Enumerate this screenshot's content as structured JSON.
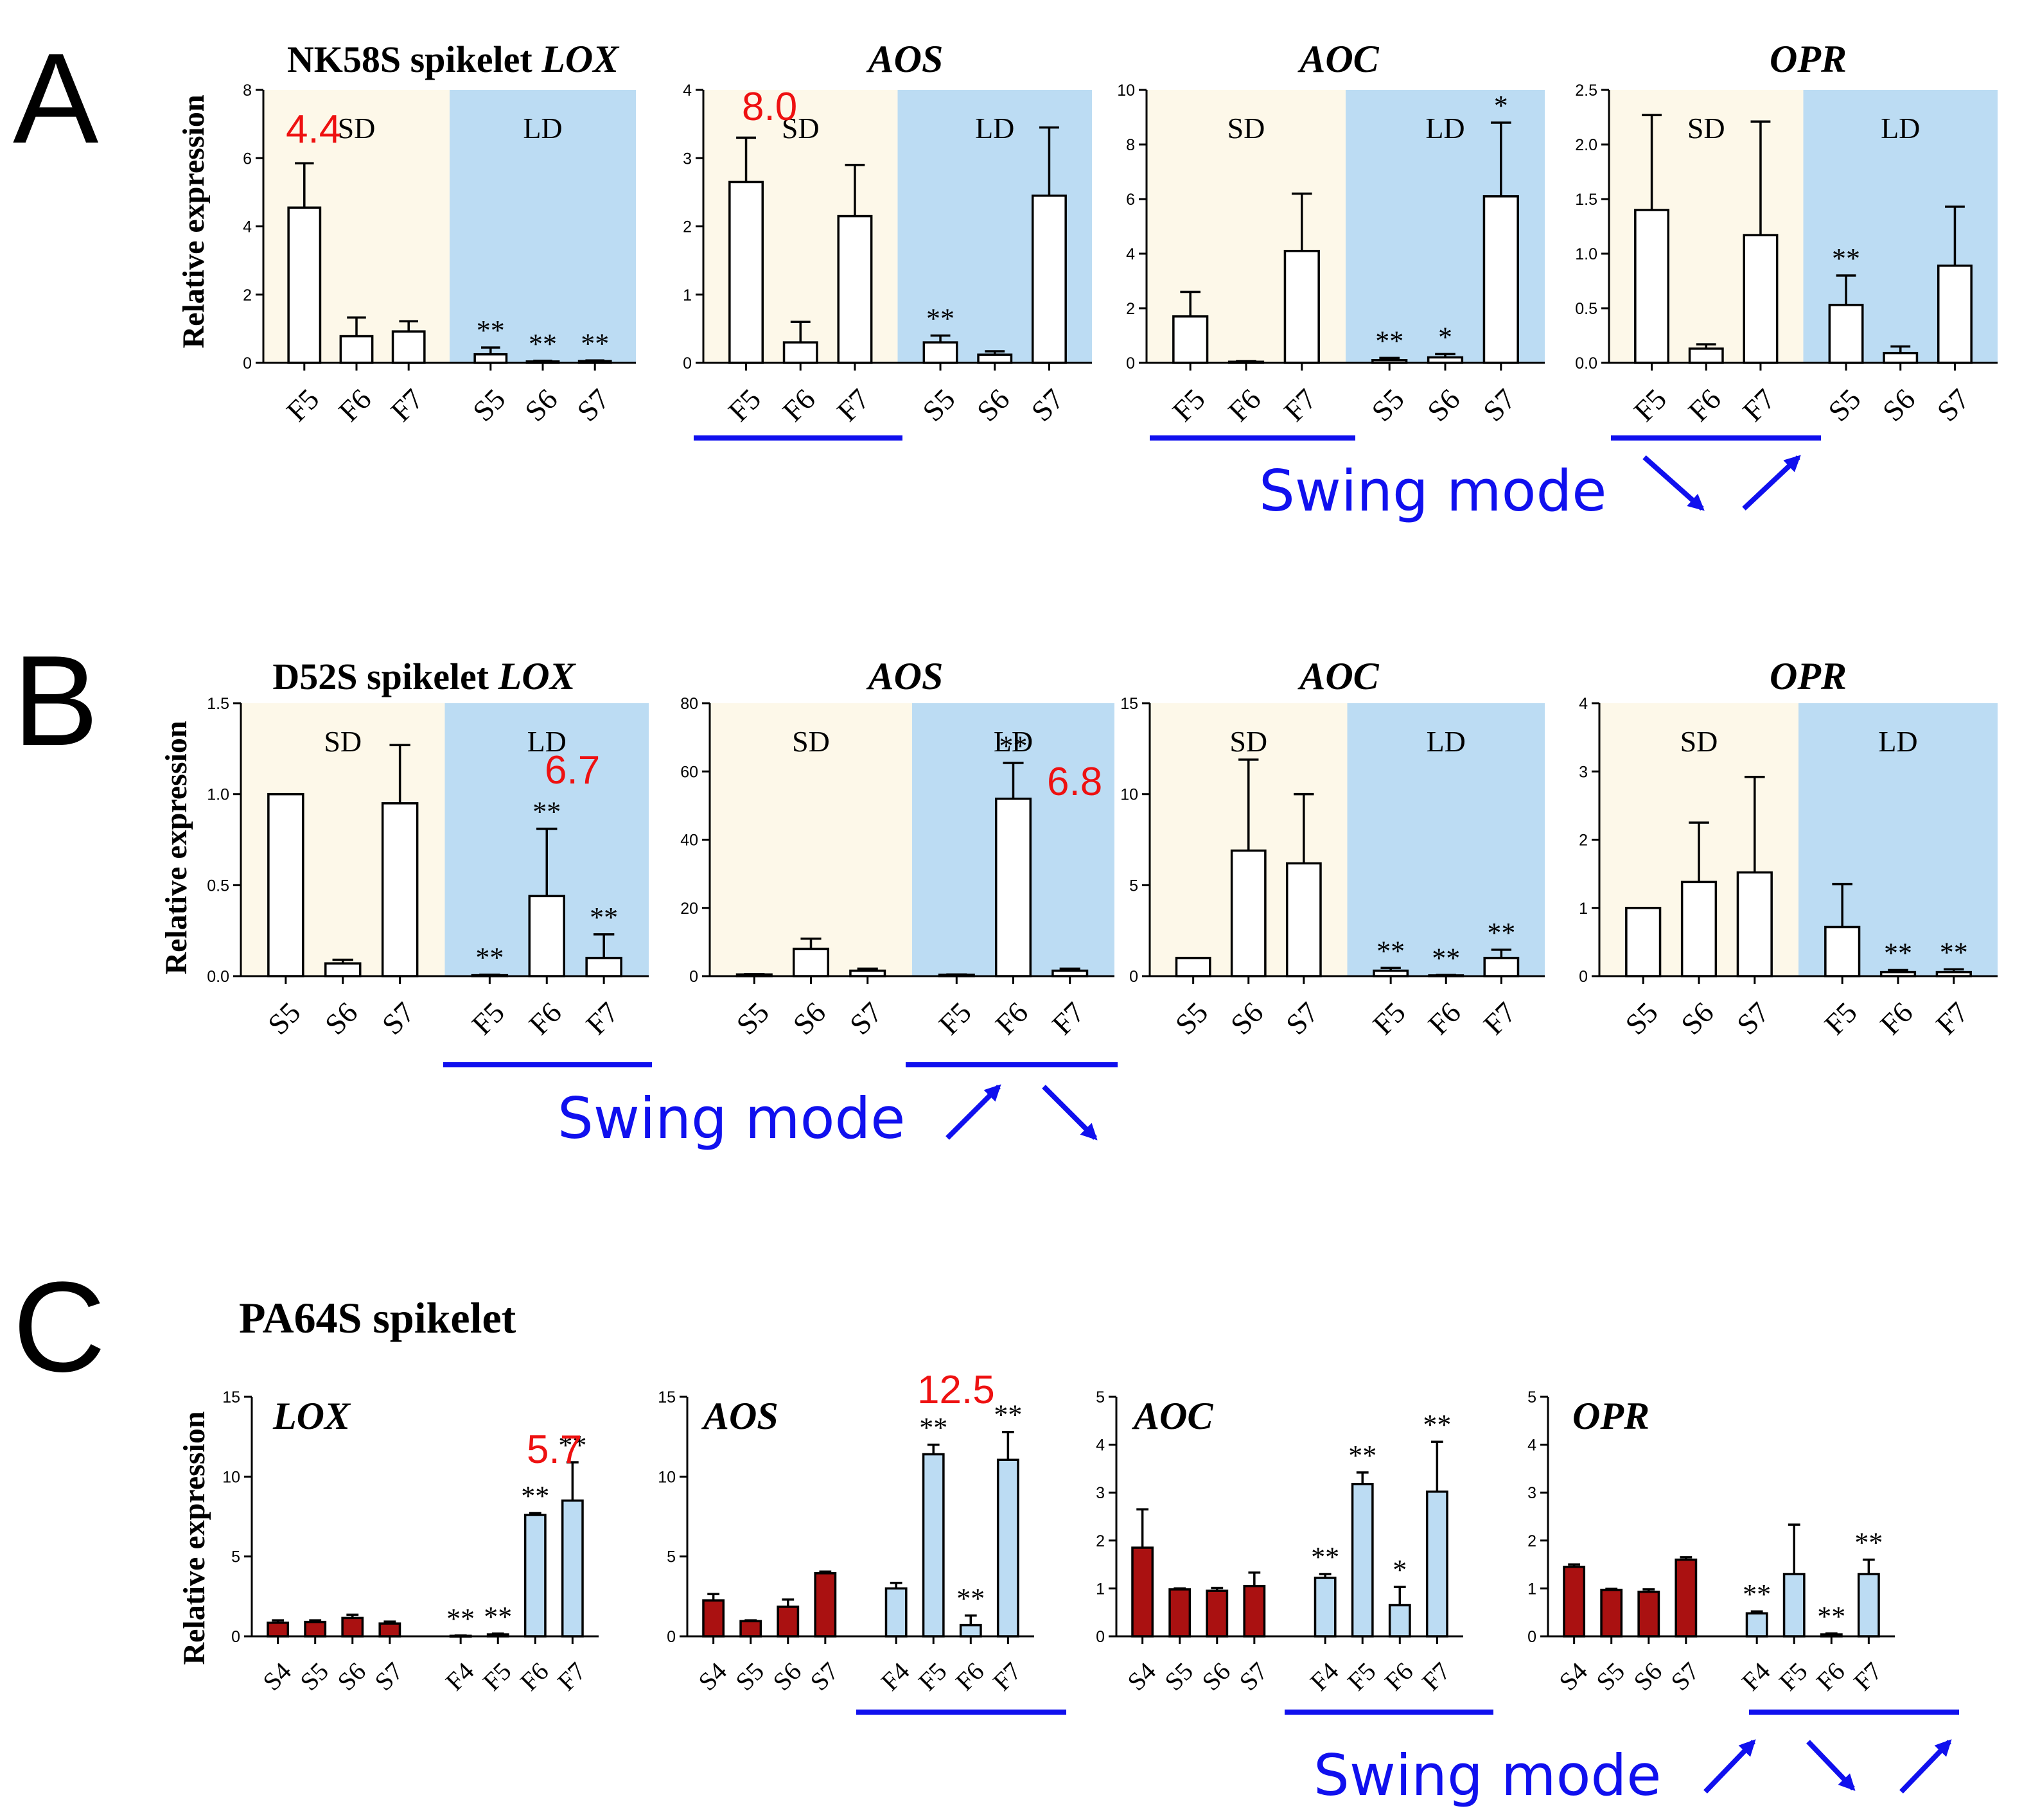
{
  "colors": {
    "sd_bg": "#fdf8e9",
    "ld_bg": "#bcdcf3",
    "bar_white": "#ffffff",
    "bar_red": "#aa1111",
    "bar_blue": "#bcdcf3",
    "swing": "#1010ee",
    "annotation": "#ee1111"
  },
  "panel_labels": [
    "A",
    "B",
    "C"
  ],
  "y_axis_label": "Relative expression",
  "swing_mode_label": "Swing mode",
  "panel_c_title": "PA64S spikelet",
  "chart_data": [
    {
      "id": "A-LOX",
      "type": "bar",
      "panel": "A",
      "title_plain": "NK58S spikelet ",
      "title_gene": "LOX",
      "categories": [
        "F5",
        "F6",
        "F7",
        "S5",
        "S6",
        "S7"
      ],
      "values": [
        4.55,
        0.78,
        0.92,
        0.25,
        0.04,
        0.05
      ],
      "errors": [
        1.3,
        0.55,
        0.3,
        0.2,
        0.02,
        0.02
      ],
      "stars": [
        "",
        "",
        "",
        "**",
        "**",
        "**"
      ],
      "ylim": [
        0,
        8
      ],
      "yticks": [
        "0",
        "2",
        "4",
        "6",
        "8"
      ],
      "regions": [
        {
          "label": "SD",
          "color": "sd"
        },
        {
          "label": "LD",
          "color": "ld"
        }
      ],
      "annotations": [
        {
          "text": "4.4",
          "bar": 0
        }
      ],
      "swing": null
    },
    {
      "id": "A-AOS",
      "type": "bar",
      "panel": "A",
      "title_plain": "",
      "title_gene": "AOS",
      "categories": [
        "F5",
        "F6",
        "F7",
        "S5",
        "S6",
        "S7"
      ],
      "values": [
        2.65,
        0.3,
        2.15,
        0.3,
        0.12,
        2.45
      ],
      "errors": [
        0.65,
        0.3,
        0.75,
        0.1,
        0.05,
        1.0
      ],
      "stars": [
        "",
        "",
        "",
        "**",
        "",
        ""
      ],
      "ylim": [
        0,
        4
      ],
      "yticks": [
        "0",
        "1",
        "2",
        "3",
        "4"
      ],
      "regions": [
        {
          "label": "SD",
          "color": "sd"
        },
        {
          "label": "LD",
          "color": "ld"
        }
      ],
      "annotations": [
        {
          "text": "8.0",
          "bar": 0
        }
      ],
      "swing": {
        "group": 0
      }
    },
    {
      "id": "A-AOC",
      "type": "bar",
      "panel": "A",
      "title_plain": "",
      "title_gene": "AOC",
      "categories": [
        "F5",
        "F6",
        "F7",
        "S5",
        "S6",
        "S7"
      ],
      "values": [
        1.7,
        0.04,
        4.1,
        0.1,
        0.2,
        6.1
      ],
      "errors": [
        0.9,
        0.02,
        2.1,
        0.08,
        0.12,
        2.7
      ],
      "stars": [
        "",
        "",
        "",
        "**",
        "*",
        "*"
      ],
      "ylim": [
        0,
        10
      ],
      "yticks": [
        "0",
        "2",
        "4",
        "6",
        "8",
        "10"
      ],
      "regions": [
        {
          "label": "SD",
          "color": "sd"
        },
        {
          "label": "LD",
          "color": "ld"
        }
      ],
      "annotations": [],
      "swing": {
        "group": 0
      }
    },
    {
      "id": "A-OPR",
      "type": "bar",
      "panel": "A",
      "title_plain": "",
      "title_gene": "OPR",
      "categories": [
        "F5",
        "F6",
        "F7",
        "S5",
        "S6",
        "S7"
      ],
      "values": [
        1.4,
        0.13,
        1.17,
        0.53,
        0.09,
        0.89
      ],
      "errors": [
        0.87,
        0.04,
        1.04,
        0.27,
        0.06,
        0.54
      ],
      "stars": [
        "",
        "",
        "",
        "**",
        "",
        ""
      ],
      "ylim": [
        0,
        2.5
      ],
      "yticks": [
        "0.0",
        "0.5",
        "1.0",
        "1.5",
        "2.0",
        "2.5"
      ],
      "regions": [
        {
          "label": "SD",
          "color": "sd"
        },
        {
          "label": "LD",
          "color": "ld"
        }
      ],
      "annotations": [],
      "swing": {
        "group": 0
      }
    },
    {
      "id": "B-LOX",
      "type": "bar",
      "panel": "B",
      "title_plain": "D52S spikelet ",
      "title_gene": "LOX",
      "categories": [
        "S5",
        "S6",
        "S7",
        "F5",
        "F6",
        "F7"
      ],
      "values": [
        1.0,
        0.07,
        0.95,
        0.005,
        0.44,
        0.1
      ],
      "errors": [
        0.0,
        0.02,
        0.32,
        0.003,
        0.37,
        0.13
      ],
      "stars": [
        "",
        "",
        "",
        "**",
        "**",
        "**"
      ],
      "ylim": [
        0,
        1.5
      ],
      "yticks": [
        "0.0",
        "0.5",
        "1.0",
        "1.5"
      ],
      "regions": [
        {
          "label": "SD",
          "color": "sd"
        },
        {
          "label": "LD",
          "color": "ld"
        }
      ],
      "annotations": [
        {
          "text": "6.7",
          "bar": 4
        }
      ],
      "swing": {
        "group": 1
      }
    },
    {
      "id": "B-AOS",
      "type": "bar",
      "panel": "B",
      "title_plain": "",
      "title_gene": "AOS",
      "categories": [
        "S5",
        "S6",
        "S7",
        "F5",
        "F6",
        "F7"
      ],
      "values": [
        0.5,
        8.0,
        1.6,
        0.4,
        52.0,
        1.6
      ],
      "errors": [
        0.1,
        3.0,
        0.6,
        0.1,
        10.5,
        0.6
      ],
      "stars": [
        "",
        "",
        "",
        "",
        "**",
        ""
      ],
      "ylim": [
        0,
        80
      ],
      "yticks": [
        "0",
        "20",
        "40",
        "60",
        "80"
      ],
      "regions": [
        {
          "label": "SD",
          "color": "sd"
        },
        {
          "label": "LD",
          "color": "ld"
        }
      ],
      "annotations": [
        {
          "text": "6.8",
          "bar": 4
        }
      ],
      "swing": {
        "group": 1
      }
    },
    {
      "id": "B-AOC",
      "type": "bar",
      "panel": "B",
      "title_plain": "",
      "title_gene": "AOC",
      "categories": [
        "S5",
        "S6",
        "S7",
        "F5",
        "F6",
        "F7"
      ],
      "values": [
        1.0,
        6.9,
        6.2,
        0.3,
        0.04,
        1.0
      ],
      "errors": [
        0.0,
        5.0,
        3.8,
        0.15,
        0.02,
        0.45
      ],
      "stars": [
        "",
        "",
        "",
        "**",
        "**",
        "**"
      ],
      "ylim": [
        0,
        15
      ],
      "yticks": [
        "0",
        "5",
        "10",
        "15"
      ],
      "regions": [
        {
          "label": "SD",
          "color": "sd"
        },
        {
          "label": "LD",
          "color": "ld"
        }
      ],
      "annotations": [],
      "swing": null
    },
    {
      "id": "B-OPR",
      "type": "bar",
      "panel": "B",
      "title_plain": "",
      "title_gene": "OPR",
      "categories": [
        "S5",
        "S6",
        "S7",
        "F5",
        "F6",
        "F7"
      ],
      "values": [
        1.0,
        1.38,
        1.52,
        0.72,
        0.06,
        0.06
      ],
      "errors": [
        0.0,
        0.87,
        1.4,
        0.63,
        0.03,
        0.04
      ],
      "stars": [
        "",
        "",
        "",
        "",
        "**",
        "**"
      ],
      "ylim": [
        0,
        4
      ],
      "yticks": [
        "0",
        "1",
        "2",
        "3",
        "4"
      ],
      "regions": [
        {
          "label": "SD",
          "color": "sd"
        },
        {
          "label": "LD",
          "color": "ld"
        }
      ],
      "annotations": [],
      "swing": null
    },
    {
      "id": "C-LOX",
      "type": "bar",
      "panel": "C",
      "title_plain": "",
      "title_gene": "LOX",
      "categories": [
        "S4",
        "S5",
        "S6",
        "S7",
        "F4",
        "F5",
        "F6",
        "F7"
      ],
      "values": [
        0.85,
        0.9,
        1.15,
        0.8,
        0.03,
        0.12,
        7.6,
        8.5
      ],
      "errors": [
        0.15,
        0.1,
        0.2,
        0.12,
        0.02,
        0.05,
        0.12,
        2.4
      ],
      "stars": [
        "",
        "",
        "",
        "",
        "**",
        "**",
        "**",
        "**"
      ],
      "ylim": [
        0,
        15
      ],
      "yticks": [
        "0",
        "5",
        "10",
        "15"
      ],
      "regions": [],
      "annotations": [
        {
          "text": "5.7",
          "bar": 6
        }
      ],
      "swing": null
    },
    {
      "id": "C-AOS",
      "type": "bar",
      "panel": "C",
      "title_plain": "",
      "title_gene": "AOS",
      "categories": [
        "S4",
        "S5",
        "S6",
        "S7",
        "F4",
        "F5",
        "F6",
        "F7"
      ],
      "values": [
        2.25,
        0.95,
        1.85,
        3.95,
        3.0,
        11.4,
        0.7,
        11.05
      ],
      "errors": [
        0.4,
        0.05,
        0.45,
        0.1,
        0.35,
        0.6,
        0.6,
        1.75
      ],
      "stars": [
        "",
        "",
        "",
        "",
        "",
        "**",
        "**",
        "**"
      ],
      "ylim": [
        0,
        15
      ],
      "yticks": [
        "0",
        "5",
        "10",
        "15"
      ],
      "regions": [],
      "annotations": [
        {
          "text": "12.5",
          "bar": 5
        }
      ],
      "swing": {
        "group": 2
      }
    },
    {
      "id": "C-AOC",
      "type": "bar",
      "panel": "C",
      "title_plain": "",
      "title_gene": "AOC",
      "categories": [
        "S4",
        "S5",
        "S6",
        "S7",
        "F4",
        "F5",
        "F6",
        "F7"
      ],
      "values": [
        1.85,
        0.98,
        0.95,
        1.05,
        1.22,
        3.18,
        0.65,
        3.02
      ],
      "errors": [
        0.8,
        0.02,
        0.06,
        0.28,
        0.08,
        0.24,
        0.38,
        1.04
      ],
      "stars": [
        "",
        "",
        "",
        "",
        "**",
        "**",
        "*",
        "**"
      ],
      "ylim": [
        0,
        5
      ],
      "yticks": [
        "0",
        "1",
        "2",
        "3",
        "4",
        "5"
      ],
      "regions": [],
      "annotations": [],
      "swing": {
        "group": 2
      }
    },
    {
      "id": "C-OPR",
      "type": "bar",
      "panel": "C",
      "title_plain": "",
      "title_gene": "OPR",
      "categories": [
        "S4",
        "S5",
        "S6",
        "S7",
        "F4",
        "F5",
        "F6",
        "F7"
      ],
      "values": [
        1.45,
        0.97,
        0.93,
        1.6,
        0.48,
        1.3,
        0.04,
        1.3
      ],
      "errors": [
        0.05,
        0.02,
        0.05,
        0.05,
        0.04,
        1.03,
        0.02,
        0.3
      ],
      "stars": [
        "",
        "",
        "",
        "",
        "**",
        "",
        "**",
        "**"
      ],
      "ylim": [
        0,
        5
      ],
      "yticks": [
        "0",
        "1",
        "2",
        "3",
        "4",
        "5"
      ],
      "regions": [],
      "annotations": [],
      "swing": {
        "group": 2
      }
    }
  ]
}
